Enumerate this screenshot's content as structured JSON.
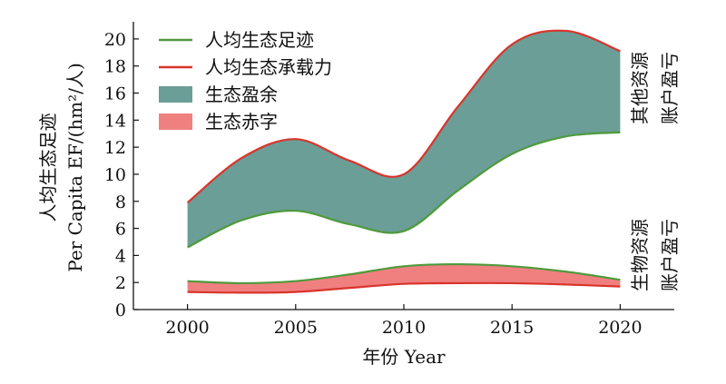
{
  "chart_data": {
    "type": "area",
    "xlabel": "年份 Year",
    "ylabel_cn": "人均生态足迹",
    "ylabel_en": "Per Capita EF/(hm²/人)",
    "x_ticks": [
      2000,
      2005,
      2010,
      2015,
      2020
    ],
    "y_ticks": [
      0,
      2,
      4,
      6,
      8,
      10,
      12,
      14,
      16,
      18,
      20
    ],
    "xlim": [
      1997.5,
      2022.5
    ],
    "ylim": [
      0,
      21
    ],
    "legend_position": "top-left",
    "legend": [
      {
        "key": "ef",
        "label": "人均生态足迹",
        "kind": "line",
        "color": "#4e9a3c"
      },
      {
        "key": "bc",
        "label": "人均生态承载力",
        "kind": "line",
        "color": "#d9342b"
      },
      {
        "key": "surplus",
        "label": "生态盈余",
        "kind": "patch",
        "color": "#6b9e96"
      },
      {
        "key": "deficit",
        "label": "生态赤字",
        "kind": "patch",
        "color": "#f08080"
      }
    ],
    "panels": [
      {
        "name": "其他资源账户盈亏",
        "lower_key": "ef",
        "upper_key": "bc",
        "fill_key": "surplus",
        "x": [
          2000,
          2002.5,
          2005,
          2007.5,
          2010,
          2012.5,
          2015,
          2017.5,
          2020
        ],
        "ef": [
          4.6,
          6.6,
          7.3,
          6.3,
          5.8,
          8.8,
          11.5,
          12.8,
          13.1
        ],
        "bc": [
          7.9,
          11.2,
          12.6,
          11.0,
          10.0,
          15.0,
          19.6,
          20.6,
          19.1
        ]
      },
      {
        "name": "生物资源账户盈亏",
        "lower_key": "bc",
        "upper_key": "ef",
        "fill_key": "deficit",
        "x": [
          2000,
          2002.5,
          2005,
          2007.5,
          2010,
          2012.5,
          2015,
          2017.5,
          2020
        ],
        "ef": [
          2.1,
          1.95,
          2.1,
          2.6,
          3.2,
          3.35,
          3.2,
          2.8,
          2.2
        ],
        "bc": [
          1.3,
          1.25,
          1.3,
          1.6,
          1.9,
          1.95,
          1.95,
          1.85,
          1.7
        ]
      }
    ],
    "side_labels": [
      {
        "lines": [
          "其他资源",
          "账户盈亏"
        ]
      },
      {
        "lines": [
          "生物资源",
          "账户盈亏"
        ]
      }
    ]
  }
}
